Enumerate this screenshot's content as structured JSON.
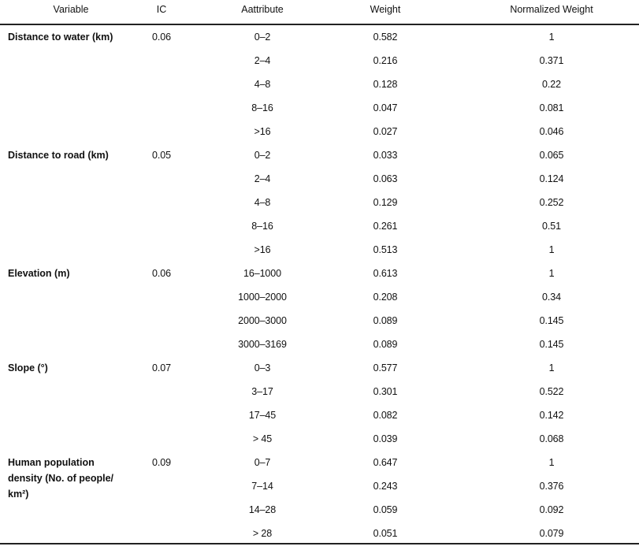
{
  "headers": [
    "Variable",
    "IC",
    "Aattribute",
    "Weight",
    "Normalized Weight"
  ],
  "groups": [
    {
      "variable": "Distance to water (km)",
      "ic": "0.06",
      "rows": [
        [
          "0–2",
          "0.582",
          "1"
        ],
        [
          "2–4",
          "0.216",
          "0.371"
        ],
        [
          "4–8",
          "0.128",
          "0.22"
        ],
        [
          "8–16",
          "0.047",
          "0.081"
        ],
        [
          ">16",
          "0.027",
          "0.046"
        ]
      ]
    },
    {
      "variable": "Distance to road (km)",
      "ic": "0.05",
      "rows": [
        [
          "0–2",
          "0.033",
          "0.065"
        ],
        [
          "2–4",
          "0.063",
          "0.124"
        ],
        [
          "4–8",
          "0.129",
          "0.252"
        ],
        [
          "8–16",
          "0.261",
          "0.51"
        ],
        [
          ">16",
          "0.513",
          "1"
        ]
      ]
    },
    {
      "variable": "Elevation (m)",
      "ic": "0.06",
      "rows": [
        [
          "16–1000",
          "0.613",
          "1"
        ],
        [
          "1000–2000",
          "0.208",
          "0.34"
        ],
        [
          "2000–3000",
          "0.089",
          "0.145"
        ],
        [
          "3000–3169",
          "0.089",
          "0.145"
        ]
      ]
    },
    {
      "variable": "Slope (°)",
      "ic": "0.07",
      "rows": [
        [
          "0–3",
          "0.577",
          "1"
        ],
        [
          "3–17",
          "0.301",
          "0.522"
        ],
        [
          "17–45",
          "0.082",
          "0.142"
        ],
        [
          "> 45",
          "0.039",
          "0.068"
        ]
      ]
    },
    {
      "variable": "Human population density (No. of people/ km²)",
      "ic": "0.09",
      "rows": [
        [
          "0–7",
          "0.647",
          "1"
        ],
        [
          "7–14",
          "0.243",
          "0.376"
        ],
        [
          "14–28",
          "0.059",
          "0.092"
        ],
        [
          "> 28",
          "0.051",
          "0.079"
        ]
      ]
    }
  ]
}
